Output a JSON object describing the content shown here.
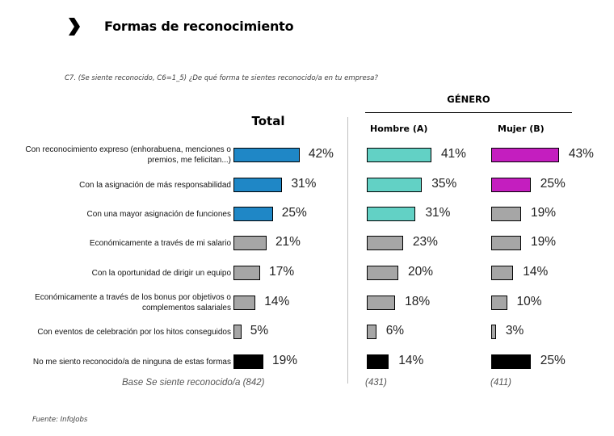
{
  "header": {
    "title": "Formas de reconocimiento",
    "icon": "chevron-right-icon",
    "question": "C7. (Se siente reconocido, C6=1_5) ¿De qué forma te sientes reconocido/a en tu empresa?"
  },
  "groups": {
    "gender_label": "GÉNERO",
    "total_label": "Total",
    "hombre_label": "Hombre (A)",
    "mujer_label": "Mujer (B)"
  },
  "bases": {
    "total": "Base Se siente reconocido/a (842)",
    "hombre": "(431)",
    "mujer": "(411)"
  },
  "source": "Fuente: InfoJobs",
  "colors": {
    "total_highlight": "#1F87C6",
    "hombre_highlight": "#62D1C5",
    "mujer_highlight": "#C41EBF",
    "neutral": "#A6A6A6",
    "none": "#000000"
  },
  "chart_data": {
    "type": "bar",
    "orientation": "horizontal",
    "title": "Formas de reconocimiento",
    "subtitle": "C7. (Se siente reconocido, C6=1_5) ¿De qué forma te sientes reconocido/a en tu empresa?",
    "unit": "%",
    "categories": [
      "Con reconocimiento expreso (enhorabuena, menciones o premios,  me felicitan...)",
      "Con la asignación de más responsabilidad",
      "Con una mayor asignación de funciones",
      "Económicamente a través de mi salario",
      "Con la oportunidad de dirigir un equipo",
      "Económicamente a través de los bonus por objetivos o complementos salariales",
      "Con eventos de celebración por los hitos conseguidos",
      "No me siento reconocido/a de ninguna de estas formas"
    ],
    "category_styles": [
      "highlight",
      "highlight",
      "highlight",
      "neutral",
      "neutral",
      "neutral",
      "neutral",
      "none"
    ],
    "series": [
      {
        "name": "Total",
        "values": [
          42,
          31,
          25,
          21,
          17,
          14,
          5,
          19
        ],
        "highlight_count": 3
      },
      {
        "name": "Hombre (A)",
        "values": [
          41,
          35,
          31,
          23,
          20,
          18,
          6,
          14
        ],
        "highlight_count": 3
      },
      {
        "name": "Mujer (B)",
        "values": [
          43,
          25,
          19,
          19,
          14,
          10,
          3,
          25
        ],
        "highlight_count": 2
      }
    ],
    "xlim": [
      0,
      100
    ],
    "grid": false,
    "legend": "none"
  }
}
